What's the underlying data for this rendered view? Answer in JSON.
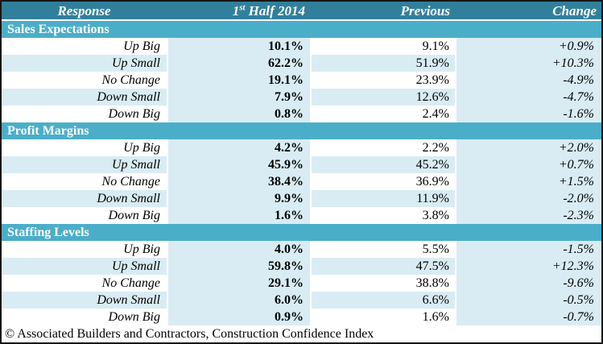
{
  "title": "Construction Confidence Index table",
  "colors": {
    "header-bg": "#31809B",
    "section-bg": "#4BAEC8",
    "cell-bg": "#D9ECF4",
    "border": "#161616",
    "text": "#000000",
    "header-text": "#FFFFFF"
  },
  "header": {
    "response": "Response",
    "half_num": "1",
    "half_sup": "st",
    "half_rest": " Half 2014",
    "previous": "Previous",
    "change": "Change"
  },
  "chart_data": {
    "type": "table",
    "columns": [
      "Response",
      "1st Half 2014",
      "Previous",
      "Change"
    ],
    "sections": [
      {
        "name": "Sales Expectations",
        "rows": [
          [
            "Up Big",
            "10.1%",
            "9.1%",
            "+0.9%"
          ],
          [
            "Up Small",
            "62.2%",
            "51.9%",
            "+10.3%"
          ],
          [
            "No Change",
            "19.1%",
            "23.9%",
            "-4.9%"
          ],
          [
            "Down Small",
            "7.9%",
            "12.6%",
            "-4.7%"
          ],
          [
            "Down Big",
            "0.8%",
            "2.4%",
            "-1.6%"
          ]
        ]
      },
      {
        "name": "Profit Margins",
        "rows": [
          [
            "Up Big",
            "4.2%",
            "2.2%",
            "+2.0%"
          ],
          [
            "Up Small",
            "45.9%",
            "45.2%",
            "+0.7%"
          ],
          [
            "No Change",
            "38.4%",
            "36.9%",
            "+1.5%"
          ],
          [
            "Down Small",
            "9.9%",
            "11.9%",
            "-2.0%"
          ],
          [
            "Down Big",
            "1.6%",
            "3.8%",
            "-2.3%"
          ]
        ]
      },
      {
        "name": "Staffing Levels",
        "rows": [
          [
            "Up Big",
            "4.0%",
            "5.5%",
            "-1.5%"
          ],
          [
            "Up Small",
            "59.8%",
            "47.5%",
            "+12.3%"
          ],
          [
            "No Change",
            "29.1%",
            "38.8%",
            "-9.6%"
          ],
          [
            "Down Small",
            "6.0%",
            "6.6%",
            "-0.5%"
          ],
          [
            "Down Big",
            "0.9%",
            "1.6%",
            "-0.7%"
          ]
        ]
      }
    ]
  },
  "footer": "© Associated Builders and Contractors, Construction Confidence Index"
}
